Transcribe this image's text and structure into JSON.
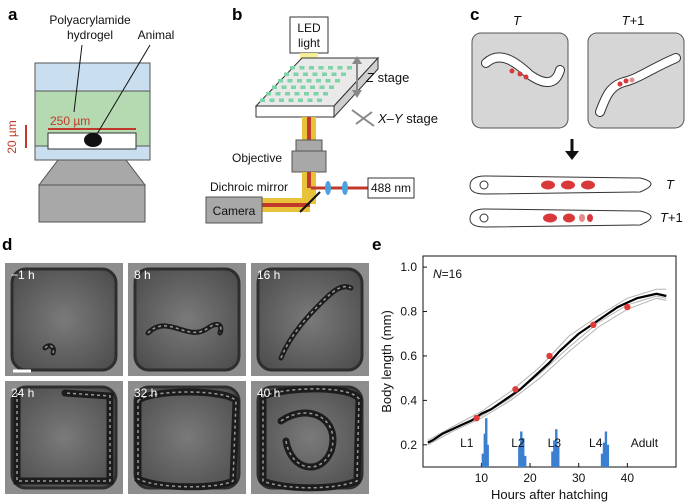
{
  "panels": {
    "a": {
      "label": "a",
      "hydrogel": "Polyacrylamide\nhydrogel",
      "hydrogel_line1": "Polyacrylamide",
      "hydrogel_line2": "hydrogel",
      "animal": "Animal",
      "depth": "250 µm",
      "scale": "20 µm",
      "colors": {
        "gel": "#b5d9b0",
        "water": "#c9dff0",
        "accent": "#c0392b"
      }
    },
    "b": {
      "label": "b",
      "led_line1": "LED",
      "led_line2": "light",
      "z_stage": "Z stage",
      "z_stage_axis": "Z",
      "z_stage_word": " stage",
      "xy_stage_axis": "X–Y",
      "xy_stage_word": " stage",
      "objective": "Objective",
      "dichroic": "Dichroic mirror",
      "camera": "Camera",
      "laser": "488 nm",
      "colors": {
        "led": "#f5e96b",
        "beam": "#e8c23a",
        "laser": "#c0392b",
        "stage_grid": "#7ed3a7"
      }
    },
    "c": {
      "label": "c",
      "t": "T",
      "t_plus": "T+1",
      "t_plus_axis": "T",
      "t_plus_suffix": "+1",
      "colors": {
        "box": "#d6d6d6",
        "cell": "#d9383a"
      }
    },
    "d": {
      "label": "d",
      "frames": [
        "−1 h",
        "8 h",
        "16 h",
        "24 h",
        "32 h",
        "40 h"
      ]
    },
    "e": {
      "label": "e",
      "n_label": "N=16",
      "n_axis": "N",
      "n_value": "=16",
      "stages": [
        "L1",
        "L2",
        "L3",
        "L4",
        "Adult"
      ]
    }
  },
  "chart_data": {
    "type": "line",
    "xlabel": "Hours after hatching",
    "ylabel": "Body length (mm)",
    "xlim": [
      -2,
      50
    ],
    "ylim": [
      0.1,
      1.05
    ],
    "xticks": [
      10,
      20,
      30,
      40
    ],
    "yticks": [
      0.2,
      0.4,
      0.6,
      0.8,
      1.0
    ],
    "ytick_labels": [
      "0.2",
      "0.4",
      "0.6",
      "0.8",
      "1.0"
    ],
    "grid": false,
    "series": [
      {
        "style": "mean",
        "color": "#000000",
        "x": [
          -1,
          0,
          2,
          4,
          6,
          8,
          10,
          12,
          14,
          16,
          18,
          20,
          22,
          24,
          26,
          28,
          30,
          32,
          34,
          36,
          38,
          40,
          42,
          44,
          46,
          48
        ],
        "y": [
          0.21,
          0.22,
          0.25,
          0.27,
          0.29,
          0.31,
          0.34,
          0.36,
          0.39,
          0.42,
          0.45,
          0.49,
          0.53,
          0.57,
          0.62,
          0.66,
          0.7,
          0.73,
          0.76,
          0.79,
          0.82,
          0.84,
          0.86,
          0.87,
          0.88,
          0.87
        ]
      },
      {
        "style": "individual",
        "color": "#b3b3b3",
        "x": [
          -1,
          4,
          10,
          16,
          22,
          28,
          34,
          40,
          46,
          48
        ],
        "y": [
          0.2,
          0.26,
          0.32,
          0.4,
          0.5,
          0.62,
          0.73,
          0.81,
          0.86,
          0.85
        ]
      },
      {
        "style": "individual",
        "color": "#b3b3b3",
        "x": [
          -1,
          4,
          10,
          16,
          22,
          28,
          34,
          40,
          46,
          48
        ],
        "y": [
          0.22,
          0.28,
          0.35,
          0.44,
          0.55,
          0.69,
          0.78,
          0.86,
          0.9,
          0.9
        ]
      },
      {
        "style": "individual",
        "color": "#b3b3b3",
        "x": [
          -1,
          4,
          10,
          16,
          22,
          28,
          34,
          40,
          46,
          48
        ],
        "y": [
          0.21,
          0.27,
          0.33,
          0.41,
          0.52,
          0.64,
          0.75,
          0.83,
          0.87,
          0.86
        ]
      }
    ],
    "markers": {
      "color": "#e03b3b",
      "x": [
        9,
        17,
        24,
        33,
        40
      ],
      "y": [
        0.32,
        0.45,
        0.6,
        0.74,
        0.82
      ]
    },
    "molt_bars": {
      "color": "#3b7fd1",
      "x": [
        10.3,
        10.7,
        11.0,
        11.3,
        17.8,
        18.2,
        18.6,
        19.0,
        24.6,
        25.0,
        25.4,
        25.8,
        34.8,
        35.2,
        35.6,
        36.0
      ],
      "height": [
        0.06,
        0.15,
        0.22,
        0.1,
        0.09,
        0.16,
        0.13,
        0.05,
        0.07,
        0.12,
        0.17,
        0.09,
        0.06,
        0.11,
        0.16,
        0.1
      ]
    },
    "stage_label_x": [
      7,
      17.5,
      25,
      33.5,
      43.5
    ]
  }
}
